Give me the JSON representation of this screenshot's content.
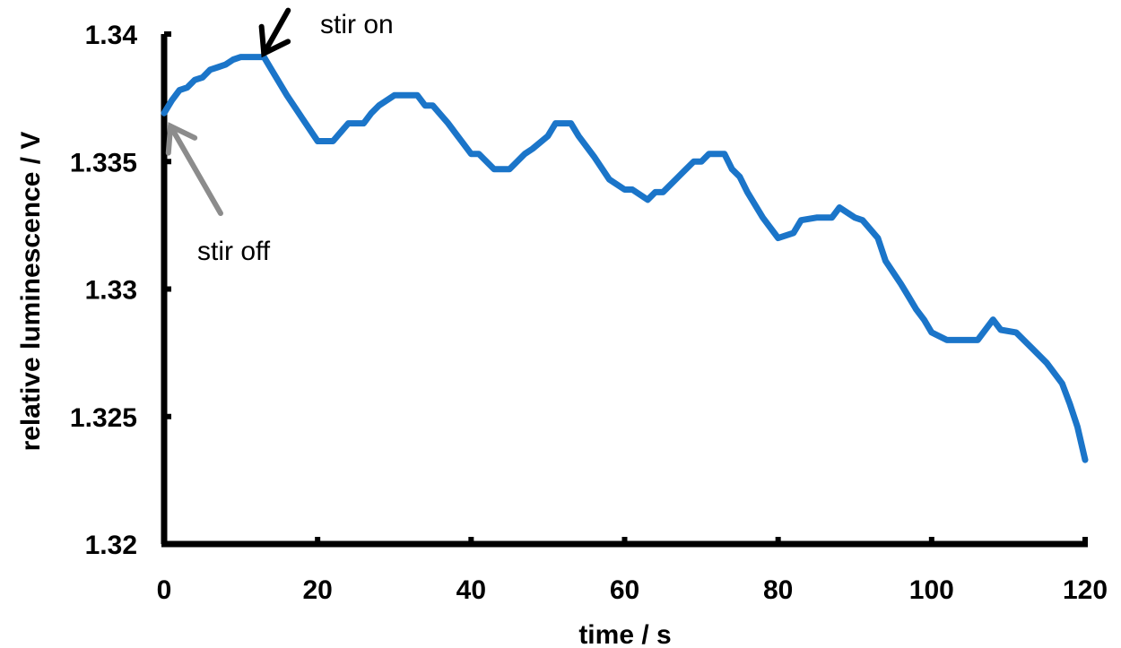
{
  "chart_data": {
    "type": "line",
    "title": "",
    "xlabel": "time / s",
    "ylabel": "relative luminescence  / V",
    "xlim": [
      0,
      120
    ],
    "ylim": [
      1.32,
      1.34
    ],
    "x_ticks": [
      0,
      20,
      40,
      60,
      80,
      100,
      120
    ],
    "x_tick_labels": [
      "0",
      "20",
      "40",
      "60",
      "80",
      "100",
      "120"
    ],
    "y_ticks": [
      1.32,
      1.325,
      1.33,
      1.335,
      1.34
    ],
    "y_tick_labels": [
      "1.32",
      "1.325",
      "1.33",
      "1.335",
      "1.34"
    ],
    "grid": false,
    "series": [
      {
        "color": "#1b75c9",
        "x": [
          0,
          1,
          2,
          3,
          4,
          5,
          6,
          7,
          8,
          9,
          10,
          11,
          12,
          13,
          14,
          16,
          18,
          20,
          22,
          24,
          26,
          27,
          28,
          30,
          31,
          33,
          34,
          35,
          37,
          40,
          41,
          43,
          45,
          47,
          48,
          50,
          51,
          53,
          54,
          56,
          58,
          60,
          61,
          63,
          64,
          65,
          67,
          69,
          70,
          71,
          73,
          74,
          75,
          76,
          78,
          80,
          82,
          83,
          85,
          87,
          88,
          89,
          90,
          91,
          93,
          94,
          96,
          97,
          98,
          99,
          100,
          102,
          104,
          106,
          108,
          109,
          111,
          113,
          115,
          117,
          118,
          119,
          120
        ],
        "y": [
          1.3369,
          1.3374,
          1.3378,
          1.3379,
          1.3382,
          1.3383,
          1.3386,
          1.3387,
          1.3388,
          1.339,
          1.3391,
          1.3391,
          1.3391,
          1.3391,
          1.3386,
          1.3376,
          1.3367,
          1.3358,
          1.3358,
          1.3365,
          1.3365,
          1.3369,
          1.3372,
          1.3376,
          1.3376,
          1.3376,
          1.3372,
          1.3372,
          1.3365,
          1.3353,
          1.3353,
          1.3347,
          1.3347,
          1.3353,
          1.3355,
          1.336,
          1.3365,
          1.3365,
          1.336,
          1.3352,
          1.3343,
          1.3339,
          1.3339,
          1.3335,
          1.3338,
          1.3338,
          1.3344,
          1.335,
          1.335,
          1.3353,
          1.3353,
          1.3347,
          1.3344,
          1.3338,
          1.3328,
          1.332,
          1.3322,
          1.3327,
          1.3328,
          1.3328,
          1.3332,
          1.333,
          1.3328,
          1.3327,
          1.332,
          1.3311,
          1.3302,
          1.3297,
          1.3292,
          1.3288,
          1.3283,
          1.328,
          1.328,
          1.328,
          1.3288,
          1.3284,
          1.3283,
          1.3277,
          1.3271,
          1.3263,
          1.3255,
          1.3246,
          1.3233
        ]
      }
    ],
    "annotations": [
      {
        "text": "stir on",
        "x": 13,
        "y": 1.3391,
        "arrow_color": "#000000"
      },
      {
        "text": "stir off",
        "x": 0.6,
        "y": 1.3366,
        "arrow_color": "#8c8c8c"
      }
    ]
  }
}
